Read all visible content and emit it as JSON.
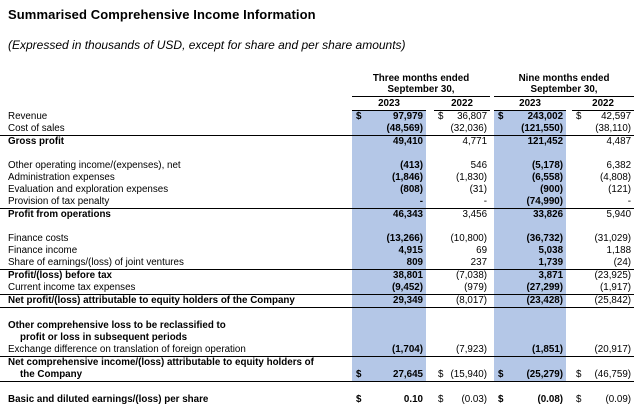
{
  "page": {
    "title": "Summarised Comprehensive Income Information",
    "subtitle": "(Expressed in thousands of USD, except for share and per share amounts)"
  },
  "table": {
    "highlight_color": "#b4c7e7",
    "currency_symbol": "$",
    "header": {
      "groups": [
        {
          "line1": "Three months ended",
          "line2": "September 30,"
        },
        {
          "line1": "Nine months ended",
          "line2": "September 30,"
        }
      ],
      "years": [
        "2023",
        "2022",
        "2023",
        "2022"
      ]
    },
    "rows": [
      {
        "label": "Revenue",
        "dollar": true,
        "values": [
          "97,979",
          "36,807",
          "243,002",
          "42,597"
        ]
      },
      {
        "label": "Cost of sales",
        "values": [
          "(48,569)",
          "(32,036)",
          "(121,550)",
          "(38,110)"
        ]
      },
      {
        "label": "Gross profit",
        "bold": true,
        "border_top": true,
        "values": [
          "49,410",
          "4,771",
          "121,452",
          "4,487"
        ]
      },
      {
        "blank": true
      },
      {
        "label": "Other operating income/(expenses), net",
        "values": [
          "(413)",
          "546",
          "(5,178)",
          "6,382"
        ]
      },
      {
        "label": "Administration expenses",
        "values": [
          "(1,846)",
          "(1,830)",
          "(6,558)",
          "(4,808)"
        ]
      },
      {
        "label": "Evaluation and exploration expenses",
        "values": [
          "(808)",
          "(31)",
          "(900)",
          "(121)"
        ]
      },
      {
        "label": "Provision of tax penalty",
        "values": [
          "-",
          "-",
          "(74,990)",
          "-"
        ]
      },
      {
        "label": "Profit from operations",
        "bold": true,
        "border_top": true,
        "values": [
          "46,343",
          "3,456",
          "33,826",
          "5,940"
        ]
      },
      {
        "blank": true
      },
      {
        "label": "Finance costs",
        "values": [
          "(13,266)",
          "(10,800)",
          "(36,732)",
          "(31,029)"
        ]
      },
      {
        "label": "Finance income",
        "values": [
          "4,915",
          "69",
          "5,038",
          "1,188"
        ]
      },
      {
        "label": "Share of earnings/(loss) of joint ventures",
        "values": [
          "809",
          "237",
          "1,739",
          "(24)"
        ]
      },
      {
        "label": "Profit/(loss) before tax",
        "bold": true,
        "border_top": true,
        "values": [
          "38,801",
          "(7,038)",
          "3,871",
          "(23,925)"
        ]
      },
      {
        "label": "Current income tax expenses",
        "values": [
          "(9,452)",
          "(979)",
          "(27,299)",
          "(1,917)"
        ]
      },
      {
        "label": "Net profit/(loss) attributable to equity holders of the Company",
        "bold": true,
        "border_top": true,
        "border_bottom": true,
        "values": [
          "29,349",
          "(8,017)",
          "(23,428)",
          "(25,842)"
        ]
      },
      {
        "blank": true
      },
      {
        "label": "Other comprehensive loss to be reclassified to",
        "bold": true,
        "values": [
          "",
          "",
          "",
          ""
        ]
      },
      {
        "label": "profit or loss in subsequent periods",
        "bold": true,
        "indent": true,
        "values": [
          "",
          "",
          "",
          ""
        ]
      },
      {
        "label": "Exchange difference on translation of foreign operation",
        "values": [
          "(1,704)",
          "(7,923)",
          "(1,851)",
          "(20,917)"
        ]
      },
      {
        "label": "Net comprehensive income/(loss) attributable to equity holders of",
        "bold": true,
        "border_top": true,
        "values": [
          "",
          "",
          "",
          ""
        ]
      },
      {
        "label": "the Company",
        "bold": true,
        "indent": true,
        "border_bottom": true,
        "dollar": true,
        "values": [
          "27,645",
          "(15,940)",
          "(25,279)",
          "(46,759)"
        ]
      },
      {
        "blank": true,
        "highlight": false
      },
      {
        "label": "Basic and diluted earnings/(loss) per share",
        "bold": true,
        "dollar": true,
        "highlight": false,
        "values": [
          "0.10",
          "(0.03)",
          "(0.08)",
          "(0.09)"
        ]
      }
    ]
  }
}
